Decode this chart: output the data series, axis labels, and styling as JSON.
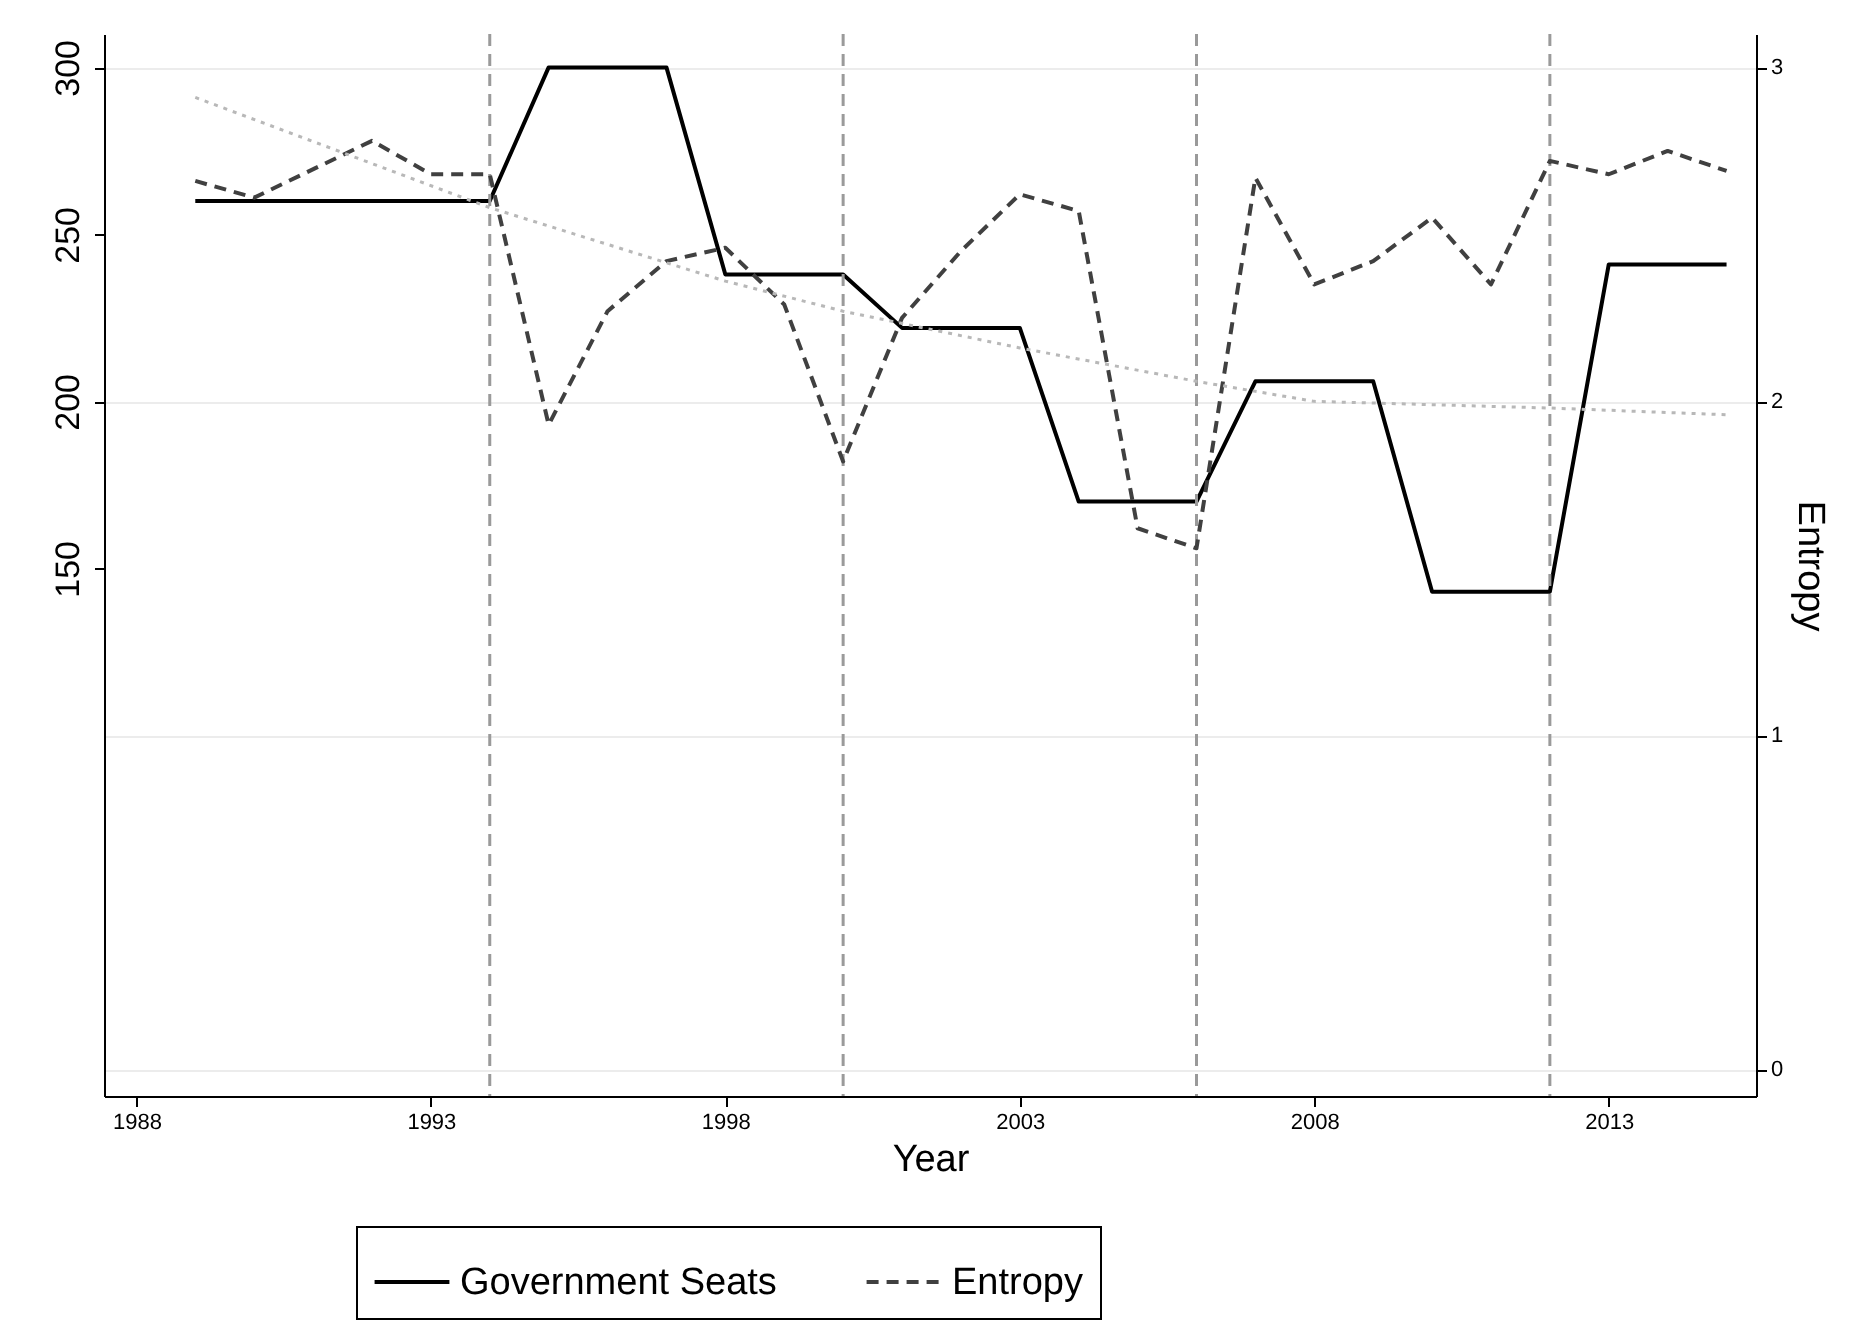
{
  "chart_data": {
    "type": "line",
    "xlabel": "Year",
    "y2label": "Entropy",
    "xlim": [
      1987.45,
      2015.5
    ],
    "xticks": [
      1988,
      1993,
      1998,
      2003,
      2008,
      2013
    ],
    "ylim": [
      -8,
      310
    ],
    "yticks": [
      150,
      200,
      250,
      300
    ],
    "y2lim": [
      -0.08,
      3.1
    ],
    "y2ticks": [
      0,
      1,
      2,
      3
    ],
    "grid": "y",
    "legend": "bottom",
    "marker": "none",
    "series": [
      {
        "name": "Government Seats",
        "color": "#000000",
        "line_style": "solid",
        "x": [
          1989,
          1994,
          1995,
          1997,
          1998,
          2000,
          2001,
          2003,
          2004,
          2006,
          2007,
          2009,
          2010,
          2012,
          2013,
          2015
        ],
        "values": [
          260,
          260,
          300,
          300,
          238,
          238,
          222,
          222,
          170,
          170,
          206,
          206,
          143,
          143,
          241,
          241
        ]
      },
      {
        "name": "Entropy",
        "color": "#404040",
        "line_style": "dashed",
        "axis": "y2",
        "x": [
          1989,
          1990,
          1992,
          1993,
          1994,
          1995,
          1996,
          1997,
          1998,
          1999,
          2000,
          2001,
          2002,
          2003,
          2004,
          2005,
          2006,
          2007,
          2008,
          2009,
          2010,
          2011,
          2012,
          2013,
          2014,
          2015
        ],
        "values": [
          2.66,
          2.61,
          2.78,
          2.68,
          2.68,
          1.93,
          2.27,
          2.42,
          2.46,
          2.29,
          1.82,
          2.25,
          2.45,
          2.62,
          2.57,
          1.62,
          1.56,
          2.67,
          2.35,
          2.42,
          2.55,
          2.35,
          2.72,
          2.68,
          2.75,
          2.69
        ]
      },
      {
        "type": "line",
        "color": "#b8b8b8",
        "line_style": "dotted",
        "axis": "y2",
        "x": [
          1989,
          1994,
          1998,
          2000,
          2003,
          2006,
          2008,
          2012,
          2015
        ],
        "values": [
          2.91,
          2.58,
          2.36,
          2.27,
          2.16,
          2.06,
          2.0,
          1.98,
          1.96
        ]
      }
    ],
    "ref_lines": [
      {
        "axis": "x",
        "value": 1994,
        "color": "#9a9a9a",
        "line_style": "dashed"
      },
      {
        "axis": "x",
        "value": 2000,
        "color": "#9a9a9a",
        "line_style": "dashed"
      },
      {
        "axis": "x",
        "value": 2006,
        "color": "#9a9a9a",
        "line_style": "dashed"
      },
      {
        "axis": "x",
        "value": 2012,
        "color": "#9a9a9a",
        "line_style": "dashed"
      }
    ]
  }
}
